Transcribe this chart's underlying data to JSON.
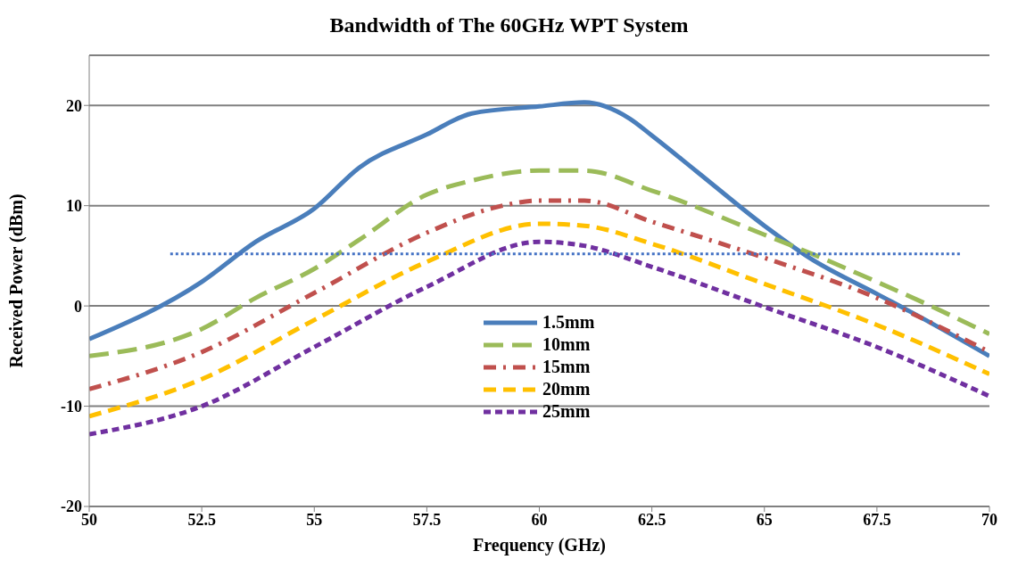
{
  "chart_data": {
    "type": "line",
    "title": "Bandwidth of The 60GHz WPT System",
    "xlabel": "Frequency (GHz)",
    "ylabel": "Received Power (dBm)",
    "xlim": [
      50,
      70
    ],
    "xticks": [
      50,
      52.5,
      55,
      57.5,
      60,
      62.5,
      65,
      67.5,
      70
    ],
    "ylim": [
      -20,
      25
    ],
    "yticks": [
      -20,
      -10,
      0,
      10,
      20
    ],
    "grid": "y",
    "legend": "bottom",
    "marker": "none",
    "series": [
      {
        "name": "1.5mm",
        "color": "#4a7ebb",
        "line_style": "solid",
        "x": [
          50,
          52.5,
          53.7,
          55,
          56,
          57.5,
          58.5,
          60,
          61,
          62,
          62.5,
          63.5,
          65,
          66,
          67.5,
          68.5,
          70
        ],
        "values": [
          -3.3,
          2.4,
          6.4,
          9.7,
          13.8,
          17.1,
          19.2,
          19.9,
          20.3,
          18.7,
          17,
          13.4,
          8,
          4.8,
          1.2,
          -1.2,
          -5
        ]
      },
      {
        "name": "10mm",
        "color": "#9bbb59",
        "line_style": "dashed",
        "x": [
          50,
          52.5,
          53.7,
          55,
          56,
          57.5,
          58.5,
          60,
          61,
          62.5,
          65,
          66,
          67.5,
          68.5,
          70
        ],
        "values": [
          -5,
          -2.3,
          0.8,
          3.7,
          6.6,
          11.1,
          12.5,
          13.5,
          13.5,
          11.5,
          7.1,
          5.3,
          2.4,
          0.4,
          -2.8
        ]
      },
      {
        "name": "15mm",
        "color": "#c0504d",
        "line_style": "dashed",
        "x": [
          50,
          52.5,
          55,
          57.5,
          59,
          60,
          61,
          62.5,
          65,
          67.5,
          70
        ],
        "values": [
          -8.3,
          -4.6,
          1.3,
          7.3,
          9.8,
          10.5,
          10.5,
          8.4,
          4.8,
          0.8,
          -4.6
        ]
      },
      {
        "name": "20mm",
        "color": "#ffc000",
        "line_style": "dashed",
        "x": [
          50,
          52.5,
          55,
          57.5,
          60,
          61,
          62.5,
          65,
          67.5,
          70
        ],
        "values": [
          -11,
          -7.3,
          -1.4,
          4.4,
          8.2,
          8,
          6.2,
          2.2,
          -1.9,
          -6.8
        ]
      },
      {
        "name": "25mm",
        "color": "#7030a0",
        "line_style": "dashed",
        "x": [
          50,
          52.5,
          55,
          57.5,
          60,
          61,
          62.5,
          65,
          67.5,
          70
        ],
        "values": [
          -12.8,
          -10,
          -4.1,
          1.9,
          6.4,
          6,
          3.9,
          -0.1,
          -4.1,
          -9
        ]
      },
      {
        "color": "#4472c4",
        "line_style": "dotted",
        "x": [
          51.8,
          69.4
        ],
        "values": [
          5.2,
          5.2
        ]
      }
    ]
  }
}
